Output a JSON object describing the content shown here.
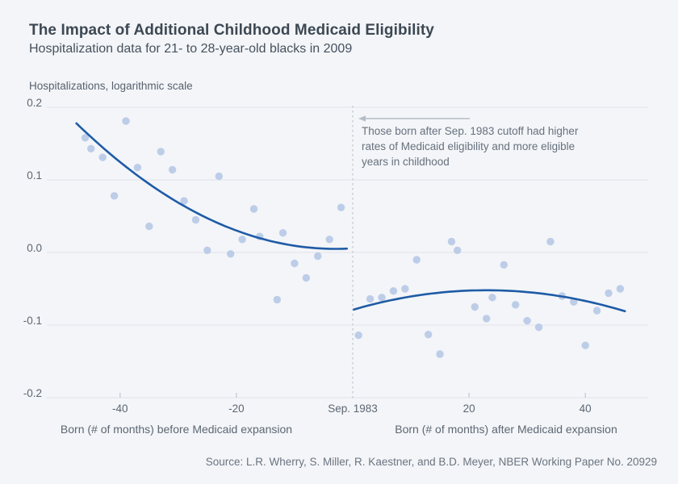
{
  "header": {
    "title": "The Impact of Additional Childhood Medicaid Eligibility",
    "subtitle": "Hospitalization data for 21- to 28-year-old blacks in 2009"
  },
  "annotation": {
    "lines": {
      "0": "Those born after Sep. 1983 cutoff had higher",
      "1": "rates of Medicaid eligibility and more eligible",
      "2": "years in childhood"
    }
  },
  "source_line": "Source: L.R. Wherry, S. Miller, R. Kaestner, and B.D. Meyer, NBER Working Paper No. 20929",
  "colors": {
    "background": "#f3f5f8",
    "gridline": "#e4e8ee",
    "tick_mark": "#c4cad4",
    "tick_label": "#5c6673",
    "cutoff_line": "#c6ccd5",
    "arrow": "#b6bcc6",
    "dot": "#b3c5e5",
    "fit_line": "#1e5ba6",
    "title_text": "#3d4853",
    "annotation_text": "#67717e"
  },
  "chart_data": {
    "type": "scatter",
    "title": "The Impact of Additional Childhood Medicaid Eligibility",
    "subtitle": "Hospitalization data for 21- to 28-year-old blacks in 2009",
    "ylabel": "Hospitalizations, logarithmic scale",
    "xlabel_left_half": "Born (# of months) before Medicaid expansion",
    "xlabel_right_half": "Born (# of months) after Medicaid expansion",
    "ylim": [
      -0.2,
      0.2
    ],
    "xlim": [
      -52.6,
      50.8
    ],
    "grid": "horizontal-only",
    "legend": "none",
    "cutoff_x": 0,
    "cutoff_label": "Sep. 1983",
    "y_ticks": [
      {
        "value": 0.2,
        "label": "0.2"
      },
      {
        "value": 0.1,
        "label": "0.1"
      },
      {
        "value": 0.0,
        "label": "0.0"
      },
      {
        "value": -0.1,
        "label": "-0.1"
      },
      {
        "value": -0.2,
        "label": "-0.2"
      }
    ],
    "x_ticks": [
      {
        "value": -40,
        "label": "-40",
        "mark": true
      },
      {
        "value": -20,
        "label": "-20",
        "mark": true
      },
      {
        "value": 0,
        "label": "Sep. 1983",
        "mark": false
      },
      {
        "value": 20,
        "label": "20",
        "mark": true
      },
      {
        "value": 40,
        "label": "40",
        "mark": true
      }
    ],
    "series": [
      {
        "name": "hospitalizations-before-cutoff",
        "type": "scatter",
        "x": [
          -46,
          -45,
          -43,
          -41,
          -39,
          -37,
          -35,
          -33,
          -31,
          -29,
          -27,
          -25,
          -23,
          -21,
          -19,
          -17,
          -16,
          -13,
          -12,
          -10,
          -8,
          -6,
          -4,
          -2
        ],
        "y": [
          0.158,
          0.143,
          0.131,
          0.078,
          0.181,
          0.117,
          0.036,
          0.139,
          0.114,
          0.071,
          0.045,
          0.003,
          0.105,
          -0.002,
          0.018,
          0.06,
          0.022,
          -0.065,
          0.027,
          -0.015,
          -0.035,
          -0.005,
          0.018,
          0.062
        ]
      },
      {
        "name": "hospitalizations-after-cutoff",
        "type": "scatter",
        "x": [
          1,
          3,
          5,
          7,
          9,
          11,
          13,
          15,
          17,
          18,
          21,
          23,
          24,
          26,
          28,
          30,
          32,
          34,
          36,
          38,
          40,
          42,
          44,
          46
        ],
        "y": [
          -0.114,
          -0.064,
          -0.062,
          -0.053,
          -0.05,
          -0.01,
          -0.113,
          -0.14,
          0.015,
          0.003,
          -0.075,
          -0.091,
          -0.062,
          -0.017,
          -0.072,
          -0.094,
          -0.103,
          0.015,
          -0.06,
          -0.068,
          -0.128,
          -0.08,
          -0.056,
          -0.05
        ]
      },
      {
        "name": "fit-before-cutoff",
        "type": "line",
        "fit": {
          "form": "quadratic",
          "a": 8.73e-05,
          "h": -3,
          "k": 0.005,
          "domain": [
            -47.5,
            -1.0
          ]
        }
      },
      {
        "name": "fit-after-cutoff",
        "type": "line",
        "fit": {
          "form": "quadratic",
          "a": -5.1e-05,
          "h": 23,
          "k": -0.052,
          "domain": [
            0.2,
            46.8
          ]
        }
      }
    ]
  }
}
